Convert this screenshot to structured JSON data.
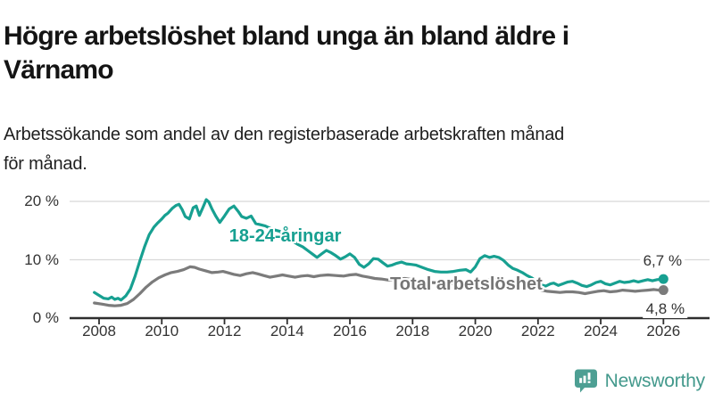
{
  "header": {
    "title": "Högre arbetslöshet bland unga än bland äldre i Värnamo",
    "title_lines": [
      "Högre arbetslöshet bland unga än bland äldre i",
      "Värnamo"
    ],
    "subtitle": "Arbetssökande som andel av den registerbaserade arbetskraften månad för månad.",
    "subtitle_lines": [
      "Arbetssökande som andel av den registerbaserade arbetskraften månad",
      "för månad."
    ]
  },
  "chart_data": {
    "type": "line",
    "x_unit": "year (monthly data)",
    "xlim": [
      2007.8,
      2026.6
    ],
    "ylim": [
      0,
      22
    ],
    "grid": "horizontal",
    "y_ticks": [
      {
        "v": 0,
        "label": "0 %"
      },
      {
        "v": 10,
        "label": "10 %"
      },
      {
        "v": 20,
        "label": "20 %"
      }
    ],
    "x_ticks": [
      2008,
      2010,
      2012,
      2014,
      2016,
      2018,
      2020,
      2022,
      2024,
      2026
    ],
    "series": [
      {
        "name": "18-24-åringar",
        "color": "#17a091",
        "end_label": "6,7 %",
        "end_value": 6.7,
        "label_pos": [
          2012.15,
          15.7
        ],
        "points": [
          [
            2007.85,
            4.4
          ],
          [
            2008.0,
            3.9
          ],
          [
            2008.15,
            3.4
          ],
          [
            2008.3,
            3.3
          ],
          [
            2008.4,
            3.6
          ],
          [
            2008.5,
            3.2
          ],
          [
            2008.6,
            3.4
          ],
          [
            2008.7,
            3.1
          ],
          [
            2008.85,
            3.8
          ],
          [
            2009.0,
            5.0
          ],
          [
            2009.15,
            7.2
          ],
          [
            2009.3,
            9.8
          ],
          [
            2009.45,
            12.2
          ],
          [
            2009.6,
            14.3
          ],
          [
            2009.75,
            15.6
          ],
          [
            2009.85,
            16.2
          ],
          [
            2010.0,
            17.0
          ],
          [
            2010.1,
            17.6
          ],
          [
            2010.2,
            18.0
          ],
          [
            2010.33,
            18.8
          ],
          [
            2010.45,
            19.3
          ],
          [
            2010.55,
            19.5
          ],
          [
            2010.65,
            18.6
          ],
          [
            2010.75,
            17.4
          ],
          [
            2010.88,
            17.0
          ],
          [
            2011.0,
            18.9
          ],
          [
            2011.1,
            19.2
          ],
          [
            2011.2,
            17.6
          ],
          [
            2011.3,
            18.8
          ],
          [
            2011.42,
            20.3
          ],
          [
            2011.5,
            19.9
          ],
          [
            2011.6,
            18.7
          ],
          [
            2011.72,
            17.5
          ],
          [
            2011.85,
            16.4
          ],
          [
            2012.0,
            17.5
          ],
          [
            2012.15,
            18.7
          ],
          [
            2012.3,
            19.2
          ],
          [
            2012.45,
            18.2
          ],
          [
            2012.55,
            17.4
          ],
          [
            2012.7,
            17.1
          ],
          [
            2012.85,
            17.5
          ],
          [
            2013.0,
            16.2
          ],
          [
            2013.15,
            16.0
          ],
          [
            2013.3,
            15.8
          ],
          [
            2013.45,
            15.4
          ],
          [
            2013.6,
            15.1
          ],
          [
            2013.75,
            14.9
          ],
          [
            2013.9,
            14.4
          ],
          [
            2014.05,
            13.8
          ],
          [
            2014.2,
            13.1
          ],
          [
            2014.35,
            12.6
          ],
          [
            2014.5,
            12.2
          ],
          [
            2014.65,
            11.6
          ],
          [
            2014.8,
            11.0
          ],
          [
            2014.95,
            10.4
          ],
          [
            2015.1,
            11.0
          ],
          [
            2015.25,
            11.6
          ],
          [
            2015.4,
            11.2
          ],
          [
            2015.55,
            10.7
          ],
          [
            2015.7,
            10.1
          ],
          [
            2015.85,
            10.5
          ],
          [
            2016.0,
            11.0
          ],
          [
            2016.15,
            10.4
          ],
          [
            2016.3,
            9.2
          ],
          [
            2016.45,
            8.7
          ],
          [
            2016.6,
            9.3
          ],
          [
            2016.75,
            10.2
          ],
          [
            2016.9,
            10.1
          ],
          [
            2017.05,
            9.5
          ],
          [
            2017.2,
            8.9
          ],
          [
            2017.35,
            9.1
          ],
          [
            2017.5,
            9.4
          ],
          [
            2017.65,
            9.6
          ],
          [
            2017.8,
            9.3
          ],
          [
            2017.95,
            9.2
          ],
          [
            2018.1,
            9.1
          ],
          [
            2018.3,
            8.7
          ],
          [
            2018.5,
            8.3
          ],
          [
            2018.7,
            8.0
          ],
          [
            2018.9,
            7.9
          ],
          [
            2019.1,
            7.9
          ],
          [
            2019.3,
            8.0
          ],
          [
            2019.5,
            8.2
          ],
          [
            2019.7,
            8.3
          ],
          [
            2019.85,
            7.9
          ],
          [
            2020.0,
            8.8
          ],
          [
            2020.15,
            10.2
          ],
          [
            2020.3,
            10.7
          ],
          [
            2020.45,
            10.4
          ],
          [
            2020.6,
            10.6
          ],
          [
            2020.75,
            10.4
          ],
          [
            2020.9,
            9.9
          ],
          [
            2021.05,
            9.1
          ],
          [
            2021.2,
            8.5
          ],
          [
            2021.35,
            8.2
          ],
          [
            2021.5,
            7.8
          ],
          [
            2021.65,
            7.3
          ],
          [
            2021.8,
            6.9
          ],
          [
            2021.95,
            6.3
          ],
          [
            2022.1,
            5.7
          ],
          [
            2022.25,
            5.5
          ],
          [
            2022.4,
            5.9
          ],
          [
            2022.5,
            6.0
          ],
          [
            2022.65,
            5.6
          ],
          [
            2022.8,
            5.9
          ],
          [
            2022.95,
            6.2
          ],
          [
            2023.1,
            6.3
          ],
          [
            2023.25,
            6.0
          ],
          [
            2023.4,
            5.6
          ],
          [
            2023.55,
            5.4
          ],
          [
            2023.7,
            5.7
          ],
          [
            2023.85,
            6.1
          ],
          [
            2024.0,
            6.3
          ],
          [
            2024.15,
            5.9
          ],
          [
            2024.3,
            5.7
          ],
          [
            2024.45,
            6.0
          ],
          [
            2024.6,
            6.3
          ],
          [
            2024.75,
            6.1
          ],
          [
            2024.9,
            6.2
          ],
          [
            2025.05,
            6.4
          ],
          [
            2025.2,
            6.2
          ],
          [
            2025.35,
            6.4
          ],
          [
            2025.5,
            6.6
          ],
          [
            2025.65,
            6.4
          ],
          [
            2025.8,
            6.6
          ],
          [
            2026.0,
            6.7
          ]
        ]
      },
      {
        "name": "Total arbetslöshet",
        "color": "#7b7b7b",
        "end_label": "4,8 %",
        "end_value": 4.8,
        "label_pos": [
          2017.28,
          7.45
        ],
        "points": [
          [
            2007.85,
            2.6
          ],
          [
            2008.1,
            2.4
          ],
          [
            2008.3,
            2.2
          ],
          [
            2008.5,
            2.1
          ],
          [
            2008.7,
            2.2
          ],
          [
            2008.9,
            2.5
          ],
          [
            2009.1,
            3.2
          ],
          [
            2009.3,
            4.2
          ],
          [
            2009.5,
            5.3
          ],
          [
            2009.7,
            6.2
          ],
          [
            2009.9,
            6.9
          ],
          [
            2010.1,
            7.4
          ],
          [
            2010.3,
            7.8
          ],
          [
            2010.5,
            8.0
          ],
          [
            2010.7,
            8.3
          ],
          [
            2010.9,
            8.8
          ],
          [
            2011.05,
            8.7
          ],
          [
            2011.2,
            8.4
          ],
          [
            2011.4,
            8.1
          ],
          [
            2011.6,
            7.8
          ],
          [
            2011.8,
            7.9
          ],
          [
            2011.95,
            8.0
          ],
          [
            2012.1,
            7.8
          ],
          [
            2012.3,
            7.5
          ],
          [
            2012.5,
            7.3
          ],
          [
            2012.7,
            7.6
          ],
          [
            2012.9,
            7.8
          ],
          [
            2013.05,
            7.6
          ],
          [
            2013.25,
            7.3
          ],
          [
            2013.45,
            7.0
          ],
          [
            2013.65,
            7.2
          ],
          [
            2013.85,
            7.4
          ],
          [
            2014.05,
            7.2
          ],
          [
            2014.25,
            7.0
          ],
          [
            2014.45,
            7.2
          ],
          [
            2014.65,
            7.3
          ],
          [
            2014.85,
            7.1
          ],
          [
            2015.05,
            7.3
          ],
          [
            2015.3,
            7.4
          ],
          [
            2015.55,
            7.3
          ],
          [
            2015.8,
            7.2
          ],
          [
            2016.0,
            7.4
          ],
          [
            2016.2,
            7.5
          ],
          [
            2016.4,
            7.2
          ],
          [
            2016.6,
            7.0
          ],
          [
            2016.8,
            6.8
          ],
          [
            2017.0,
            6.7
          ],
          [
            2017.25,
            6.5
          ],
          [
            2017.5,
            6.6
          ],
          [
            2017.75,
            6.8
          ],
          [
            2018.0,
            6.6
          ],
          [
            2018.3,
            6.3
          ],
          [
            2018.6,
            6.1
          ],
          [
            2018.9,
            6.0
          ],
          [
            2019.2,
            5.9
          ],
          [
            2019.5,
            5.9
          ],
          [
            2019.8,
            6.0
          ],
          [
            2020.1,
            6.3
          ],
          [
            2020.4,
            6.6
          ],
          [
            2020.7,
            6.5
          ],
          [
            2021.0,
            6.2
          ],
          [
            2021.3,
            5.9
          ],
          [
            2021.6,
            5.5
          ],
          [
            2021.9,
            5.1
          ],
          [
            2022.1,
            4.8
          ],
          [
            2022.3,
            4.6
          ],
          [
            2022.5,
            4.5
          ],
          [
            2022.7,
            4.4
          ],
          [
            2022.9,
            4.5
          ],
          [
            2023.1,
            4.5
          ],
          [
            2023.3,
            4.4
          ],
          [
            2023.5,
            4.2
          ],
          [
            2023.7,
            4.4
          ],
          [
            2023.9,
            4.6
          ],
          [
            2024.1,
            4.7
          ],
          [
            2024.3,
            4.5
          ],
          [
            2024.5,
            4.6
          ],
          [
            2024.7,
            4.8
          ],
          [
            2024.9,
            4.7
          ],
          [
            2025.1,
            4.6
          ],
          [
            2025.3,
            4.7
          ],
          [
            2025.5,
            4.8
          ],
          [
            2025.7,
            4.9
          ],
          [
            2025.85,
            4.8
          ],
          [
            2026.0,
            4.8
          ]
        ]
      }
    ]
  },
  "footer": {
    "brand": "Newsworthy"
  },
  "colors": {
    "accent_teal": "#17a091",
    "series_gray": "#7b7b7b",
    "axis": "#2e2e2e",
    "gridline": "#d8d8d8",
    "brand_teal": "#43998c"
  }
}
